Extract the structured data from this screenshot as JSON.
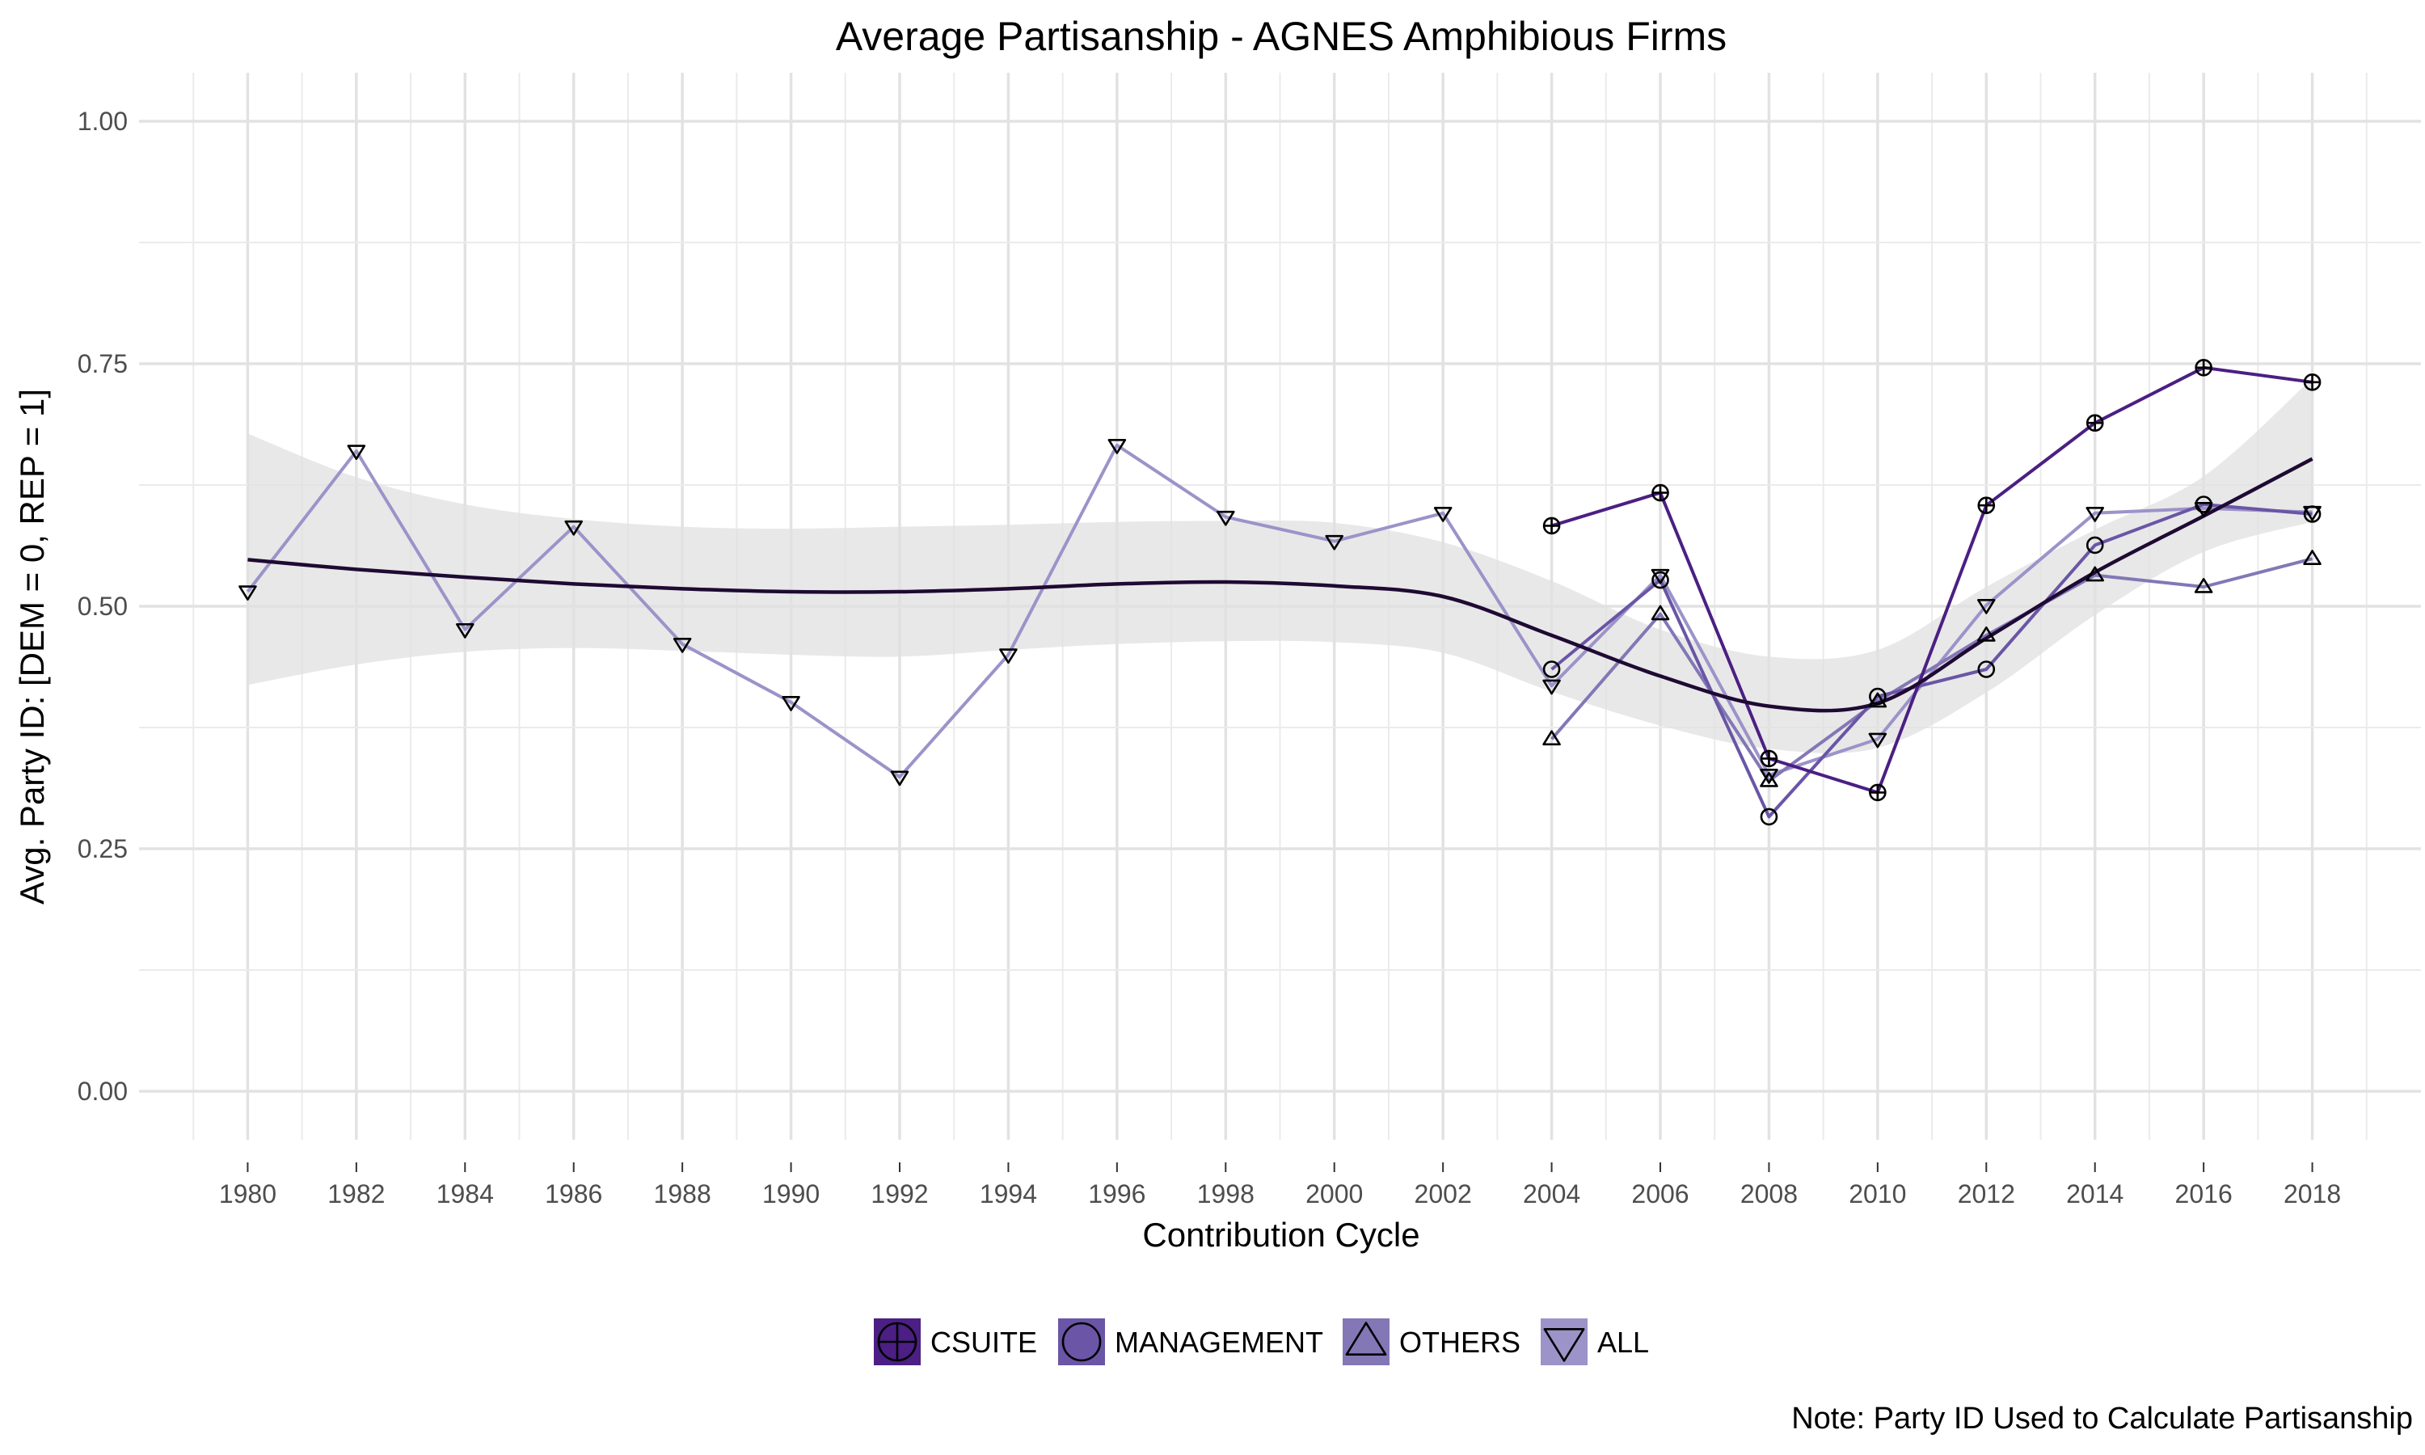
{
  "chart_data": {
    "type": "line",
    "title": "Average Partisanship - AGNES Amphibious Firms",
    "xlabel": "Contribution Cycle",
    "ylabel": "Avg. Party ID: [DEM = 0, REP = 1]",
    "caption": "Note: Party ID Used to Calculate Partisanship",
    "xlim": [
      1978,
      2020
    ],
    "ylim": [
      -0.05,
      1.05
    ],
    "x_ticks": [
      "1980",
      "1982",
      "1984",
      "1986",
      "1988",
      "1990",
      "1992",
      "1994",
      "1996",
      "1998",
      "2000",
      "2002",
      "2004",
      "2006",
      "2008",
      "2010",
      "2012",
      "2014",
      "2016",
      "2018"
    ],
    "y_ticks": [
      "0.00",
      "0.25",
      "0.50",
      "0.75",
      "1.00"
    ],
    "grid": true,
    "legend_position": "bottom",
    "series": [
      {
        "name": "CSUITE",
        "color": "#4b1f83",
        "marker": "circle-plus",
        "x": [
          2004,
          2006,
          2008,
          2010,
          2012,
          2014,
          2016,
          2018
        ],
        "y": [
          0.583,
          0.617,
          0.343,
          0.308,
          0.604,
          0.689,
          0.746,
          0.731
        ]
      },
      {
        "name": "MANAGEMENT",
        "color": "#6a55a6",
        "marker": "circle",
        "x": [
          2004,
          2006,
          2008,
          2010,
          2012,
          2014,
          2016,
          2018
        ],
        "y": [
          0.435,
          0.527,
          0.283,
          0.407,
          0.435,
          0.563,
          0.605,
          0.595
        ]
      },
      {
        "name": "OTHERS",
        "color": "#8377b6",
        "marker": "triangle-up",
        "x": [
          2004,
          2006,
          2008,
          2010,
          2012,
          2014,
          2016,
          2018
        ],
        "y": [
          0.363,
          0.492,
          0.32,
          0.402,
          0.47,
          0.532,
          0.52,
          0.549
        ]
      },
      {
        "name": "ALL",
        "color": "#9c93c9",
        "marker": "triangle-down",
        "x": [
          1980,
          1982,
          1984,
          1986,
          1988,
          1990,
          1992,
          1994,
          1996,
          1998,
          2000,
          2002,
          2004,
          2006,
          2008,
          2010,
          2012,
          2014,
          2016,
          2018
        ],
        "y": [
          0.515,
          0.66,
          0.476,
          0.582,
          0.461,
          0.401,
          0.324,
          0.45,
          0.666,
          0.592,
          0.567,
          0.596,
          0.418,
          0.532,
          0.326,
          0.363,
          0.501,
          0.596,
          0.601,
          0.597
        ]
      }
    ],
    "trend": {
      "color": "#1f0a33",
      "band_color": "#e0e0e0",
      "x": [
        1980,
        1982,
        1984,
        1986,
        1988,
        1990,
        1992,
        1994,
        1996,
        1998,
        2000,
        2002,
        2004,
        2006,
        2008,
        2010,
        2012,
        2014,
        2016,
        2018
      ],
      "y": [
        0.548,
        0.538,
        0.53,
        0.523,
        0.518,
        0.515,
        0.515,
        0.518,
        0.523,
        0.525,
        0.521,
        0.51,
        0.47,
        0.428,
        0.397,
        0.4,
        0.467,
        0.535,
        0.593,
        0.652
      ],
      "lower": [
        0.419,
        0.44,
        0.453,
        0.457,
        0.454,
        0.45,
        0.448,
        0.455,
        0.461,
        0.464,
        0.463,
        0.452,
        0.412,
        0.377,
        0.353,
        0.354,
        0.411,
        0.491,
        0.556,
        0.587
      ],
      "upper": [
        0.678,
        0.633,
        0.605,
        0.59,
        0.582,
        0.58,
        0.582,
        0.584,
        0.587,
        0.588,
        0.586,
        0.566,
        0.526,
        0.476,
        0.448,
        0.455,
        0.52,
        0.579,
        0.634,
        0.735
      ]
    }
  }
}
